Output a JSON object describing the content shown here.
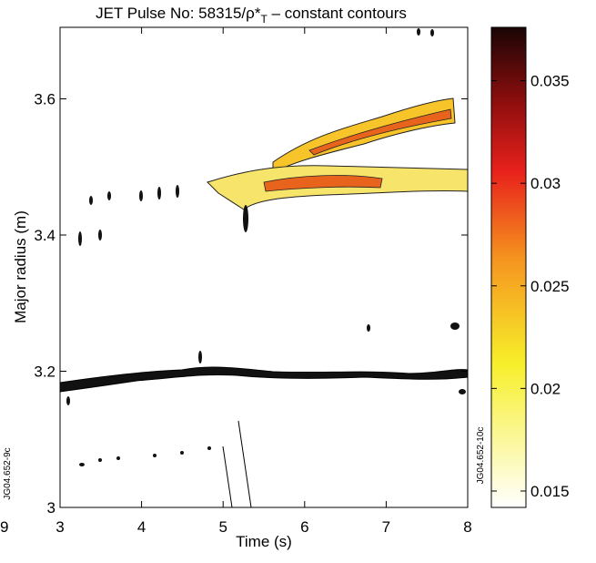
{
  "chart_data": {
    "type": "contour",
    "title": [
      "JET Pulse No: 58315/ρ*",
      "T",
      " – constant contours"
    ],
    "x_label": "Time (s)",
    "y_label": "Major radius (m)",
    "xlim": [
      3,
      8
    ],
    "xticks": [
      3,
      4,
      5,
      6,
      7,
      8
    ],
    "ylim": [
      3,
      3.705
    ],
    "yticks": [
      3,
      3.2,
      3.4,
      3.6
    ],
    "colorbar": {
      "lim": [
        0.0142,
        0.0376
      ],
      "ticks": [
        0.015,
        0.02,
        0.025,
        0.03,
        0.035
      ]
    },
    "side_labels": [
      "JG04.652-9c",
      "JG04.652-10c",
      "9"
    ]
  }
}
